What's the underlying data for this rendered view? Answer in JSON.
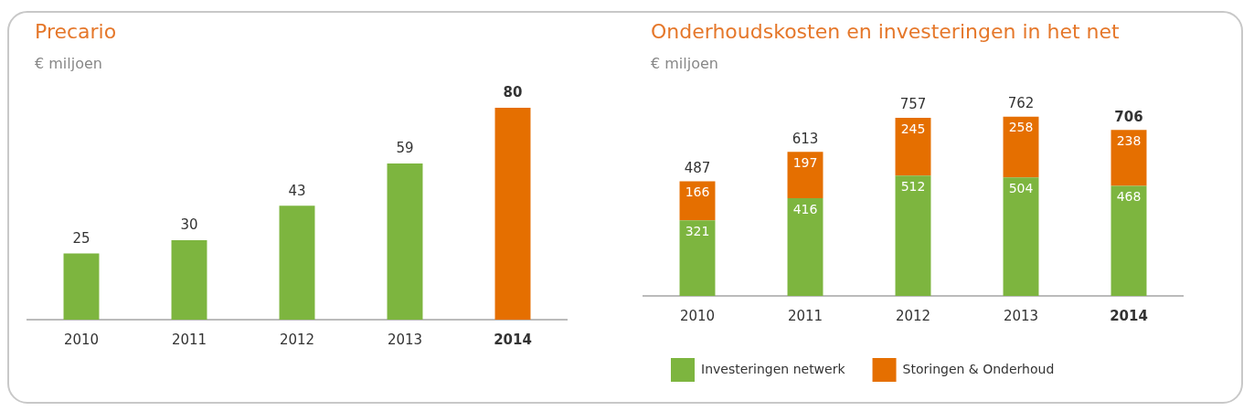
{
  "chart_data": [
    {
      "type": "bar",
      "title": "Precario",
      "subtitle": "€ miljoen",
      "categories": [
        "2010",
        "2011",
        "2012",
        "2013",
        "2014"
      ],
      "values": [
        25,
        30,
        43,
        59,
        80
      ],
      "colors": [
        "#7db53f",
        "#7db53f",
        "#7db53f",
        "#7db53f",
        "#e56f00"
      ],
      "data_labels": true
    },
    {
      "type": "bar",
      "title": "Onderhoudskosten en investeringen in het net",
      "subtitle": "€ miljoen",
      "categories": [
        "2010",
        "2011",
        "2012",
        "2013",
        "2014"
      ],
      "stacked": true,
      "data_labels": true,
      "legend": "bottom",
      "series": [
        {
          "name": "Investeringen netwerk",
          "color": "#7db53f",
          "values": [
            321,
            416,
            512,
            504,
            468
          ]
        },
        {
          "name": "Storingen & Onderhoud",
          "color": "#e56f00",
          "values": [
            166,
            197,
            245,
            258,
            238
          ]
        }
      ],
      "totals": [
        "487",
        "613",
        "757",
        "762",
        "706"
      ]
    }
  ]
}
